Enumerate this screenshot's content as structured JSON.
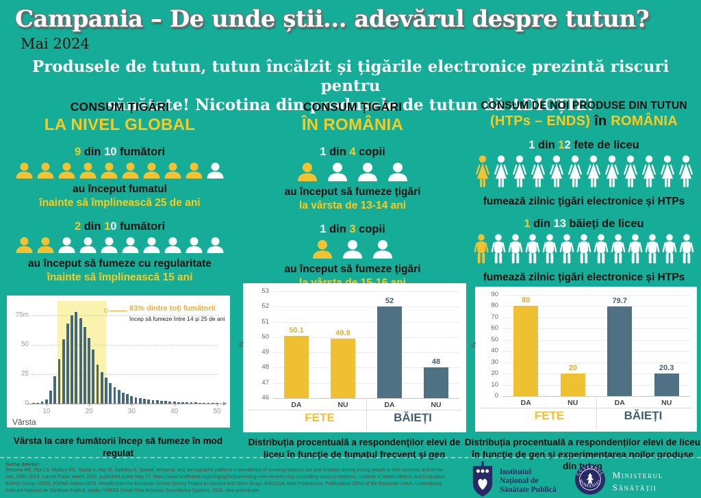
{
  "header": {
    "title": "Campania –  De unde știi... adevărul despre tutun?",
    "date": "Mai 2024"
  },
  "subtitle": {
    "line1": "Produsele de tutun, tutun încălzit și țigările electronice prezintă riscuri pentru",
    "line2": "sănătate! Nicotina din produsele de tutun dă ADICȚIE!"
  },
  "colors": {
    "background": "#15AD97",
    "yellow_text": "#FACB1E",
    "yellow_icon": "#F1C232",
    "yellow_bar": "#EFC032",
    "yellow_value_label": "#DFAF25",
    "slate_bar": "#507084",
    "slate_value_label": "#3F5F6E",
    "navy_logo": "#272A64",
    "hist_bar": "#44697C",
    "hist_band": "#FAF3B0",
    "annotation_orange": "#F2AE3C"
  },
  "columns": {
    "global": {
      "title_top": "CONSUM ȚIGĂRI",
      "title_bottom": "LA NIVEL GLOBAL",
      "stat1": {
        "parts": [
          {
            "t": "9",
            "c": "seg-y"
          },
          {
            "t": " din ",
            "c": "seg-k"
          },
          {
            "t": "10",
            "c": "seg-w"
          },
          {
            "t": " fumători",
            "c": "seg-k"
          }
        ],
        "people": {
          "count": 10,
          "filled": 9,
          "kind": "bust",
          "size": 29,
          "gap": 2
        },
        "line1": "au început fumatul",
        "line2": "înainte să împlinească 25 de ani"
      },
      "stat2": {
        "parts": [
          {
            "t": "2",
            "c": "seg-y"
          },
          {
            "t": " din ",
            "c": "seg-k"
          },
          {
            "t": "1",
            "c": "seg-y"
          },
          {
            "t": "0",
            "c": "seg-w"
          },
          {
            "t": " fumători",
            "c": "seg-k"
          }
        ],
        "people": {
          "count": 10,
          "filled": 2,
          "kind": "bust",
          "size": 29,
          "gap": 2
        },
        "line1": "au început să fumeze cu regularitate",
        "line2": "înainte să împlinească 15 ani"
      },
      "caption": "Vârsta la care fumătorii încep să fumeze în mod regulat"
    },
    "romania": {
      "title_top": "CONSUM ȚIGĂRI",
      "title_bottom": "ÎN ROMÂNIA",
      "stat1": {
        "parts": [
          {
            "t": "1",
            "c": "seg-w"
          },
          {
            "t": " din ",
            "c": "seg-k"
          },
          {
            "t": "4",
            "c": "seg-y"
          },
          {
            "t": " copii",
            "c": "seg-k"
          }
        ],
        "people": {
          "count": 4,
          "filled": 1,
          "kind": "bust",
          "size": 34,
          "gap": 10
        },
        "line1": "au început să fumeze țigări",
        "line2": "la vârsta de 13-14 ani"
      },
      "stat2": {
        "parts": [
          {
            "t": "1",
            "c": "seg-w"
          },
          {
            "t": " din ",
            "c": "seg-k"
          },
          {
            "t": "3",
            "c": "seg-y"
          },
          {
            "t": " copii",
            "c": "seg-k"
          }
        ],
        "people": {
          "count": 3,
          "filled": 1,
          "kind": "bust",
          "size": 34,
          "gap": 10
        },
        "line1": "au început să fumeze țigări",
        "line2": "la vârsta de 15-16 ani"
      },
      "caption": "Distribuția procentuală a respondenților elevi de liceu în funcție de fumatul frecvent și gen"
    },
    "htp": {
      "title_top": "CONSUM DE NOI PRODUSE DIN TUTUN",
      "title_bottom_parts": [
        {
          "t": "(HTPs – ENDS) ",
          "c": "seg-y"
        },
        {
          "t": "în ",
          "c": "seg-k"
        },
        {
          "t": "ROMÂNIA",
          "c": "seg-y"
        }
      ],
      "stat1": {
        "parts": [
          {
            "t": "1",
            "c": "seg-w"
          },
          {
            "t": " din ",
            "c": "seg-k"
          },
          {
            "t": "1",
            "c": "seg-y"
          },
          {
            "t": "2",
            "c": "seg-w"
          },
          {
            "t": " fete de liceu",
            "c": "seg-k"
          }
        ],
        "people": {
          "count": 12,
          "filled": 1,
          "kind": "female",
          "size": 26,
          "gap": 1
        },
        "line1": "fumează zilnic țigări electronice și HTPs"
      },
      "stat2": {
        "parts": [
          {
            "t": "1",
            "c": "seg-y"
          },
          {
            "t": " din ",
            "c": "seg-k"
          },
          {
            "t": "13",
            "c": "seg-w"
          },
          {
            "t": " băieți de liceu",
            "c": "seg-k"
          }
        ],
        "people": {
          "count": 13,
          "filled": 1,
          "kind": "male",
          "size": 24,
          "gap": 1
        },
        "line1": "fumează zilnic țigări electronice și HTPs"
      },
      "caption": "Distribuția procentuală a respondenților elevi de liceu în funcție de gen și experimentarea noilor produse din tutun"
    }
  },
  "chart_data": [
    {
      "id": "age_histogram",
      "type": "bar",
      "title": "",
      "xlabel": "Vârsta",
      "ylabel": "",
      "unit": "milioane de fumători",
      "ages_from": 7,
      "ages_to": 50,
      "values": [
        0.4,
        0.8,
        1.5,
        3.5,
        11,
        23,
        38,
        55,
        68,
        75,
        78,
        73,
        65,
        56,
        46,
        33,
        27,
        22,
        17.5,
        14,
        11.5,
        9.5,
        8,
        6.5,
        5.5,
        4.8,
        4.2,
        3.6,
        3.2,
        2.8,
        2.4,
        2.1,
        1.9,
        1.6,
        1.4,
        1.3,
        1.1,
        1.0,
        0.9,
        0.8,
        0.7,
        0.6,
        0.5,
        0.4
      ],
      "ylim": [
        0,
        85
      ],
      "yticks": [
        {
          "v": 75,
          "label": "75m"
        },
        {
          "v": 50,
          "label": "50"
        },
        {
          "v": 25,
          "label": "25"
        },
        {
          "v": 0,
          "label": "0"
        }
      ],
      "xticks": [
        10,
        20,
        30,
        40,
        50
      ],
      "grid": "dotted horizontal",
      "highlight_band": {
        "from": 13,
        "to": 24
      },
      "annotation": {
        "line1": "83% dintre toți fumătorii",
        "line2": "încep să fumeze între 14 și 25 de ani"
      }
    },
    {
      "id": "smoking_by_gender",
      "type": "bar",
      "ylabel": "%",
      "ylim": [
        46,
        53
      ],
      "yticks": [
        53,
        52,
        51,
        50,
        49,
        48,
        47,
        46
      ],
      "grid": "horizontal",
      "legend_position": "none",
      "groups": [
        {
          "label": "FETE",
          "color": "yellow",
          "bars": [
            {
              "label": "DA",
              "value": 50.1,
              "value_label": "50.1"
            },
            {
              "label": "NU",
              "value": 49.9,
              "value_label": "49.9"
            }
          ]
        },
        {
          "label": "BĂIEȚI",
          "color": "slate",
          "bars": [
            {
              "label": "DA",
              "value": 52,
              "value_label": "52"
            },
            {
              "label": "NU",
              "value": 48,
              "value_label": "48"
            }
          ]
        }
      ]
    },
    {
      "id": "new_products_by_gender",
      "type": "bar",
      "ylabel": "%",
      "ylim": [
        0,
        90
      ],
      "yticks": [
        90,
        80,
        70,
        60,
        50,
        40,
        30,
        20,
        10,
        0
      ],
      "grid": "horizontal",
      "legend_position": "none",
      "groups": [
        {
          "label": "FETE",
          "color": "yellow",
          "bars": [
            {
              "label": "DA",
              "value": 80,
              "value_label": "80"
            },
            {
              "label": "NU",
              "value": 20,
              "value_label": "20"
            }
          ]
        },
        {
          "label": "BĂIEȚI",
          "color": "slate",
          "bars": [
            {
              "label": "DA",
              "value": 79.7,
              "value_label": "79.7"
            },
            {
              "label": "NU",
              "value": 20.3,
              "value_label": "20.3"
            }
          ]
        }
      ]
    }
  ],
  "footer": {
    "sources_label": "Sursa datelor:",
    "lines": [
      "Reitsma MB, Flor LS, Mullany EC, Gupta V, Hay SI, Gakidou E. Spatial, temporal, and demographic patterns in prevalence of smoking tobacco use and initiation among young people in 204 countries and territo-",
      "ries, 1990–2019. Lancet Public Health 2021; published online May 27. https://www.healthdata.org/infographic/preventing-new-smokers-key-controlling-tobacco-epidemic; Institute of Health Metrics and Evaluation.",
      "ESPAD Group (2020), ESPAD Report 2019: Results from the European School Survey Project on Alcohol and Other Drugs, EMCDDA Joint Publications, Publications Office of the European Union, Luxembourg.",
      "Institutul Național de Sănătate Publică, studiul YRBSS (Youth Risk Behavior Surveillance System), 2023, date preliminare."
    ]
  },
  "logos": {
    "insp_line1": "Institutul",
    "insp_line2": "Național de",
    "insp_line3": "Sănătate Publică",
    "gov_top": "GUVERNUL",
    "gov_bottom": "ROMÂNIEI",
    "ministry_line1": "Ministerul",
    "ministry_line2": "Sănătății"
  }
}
